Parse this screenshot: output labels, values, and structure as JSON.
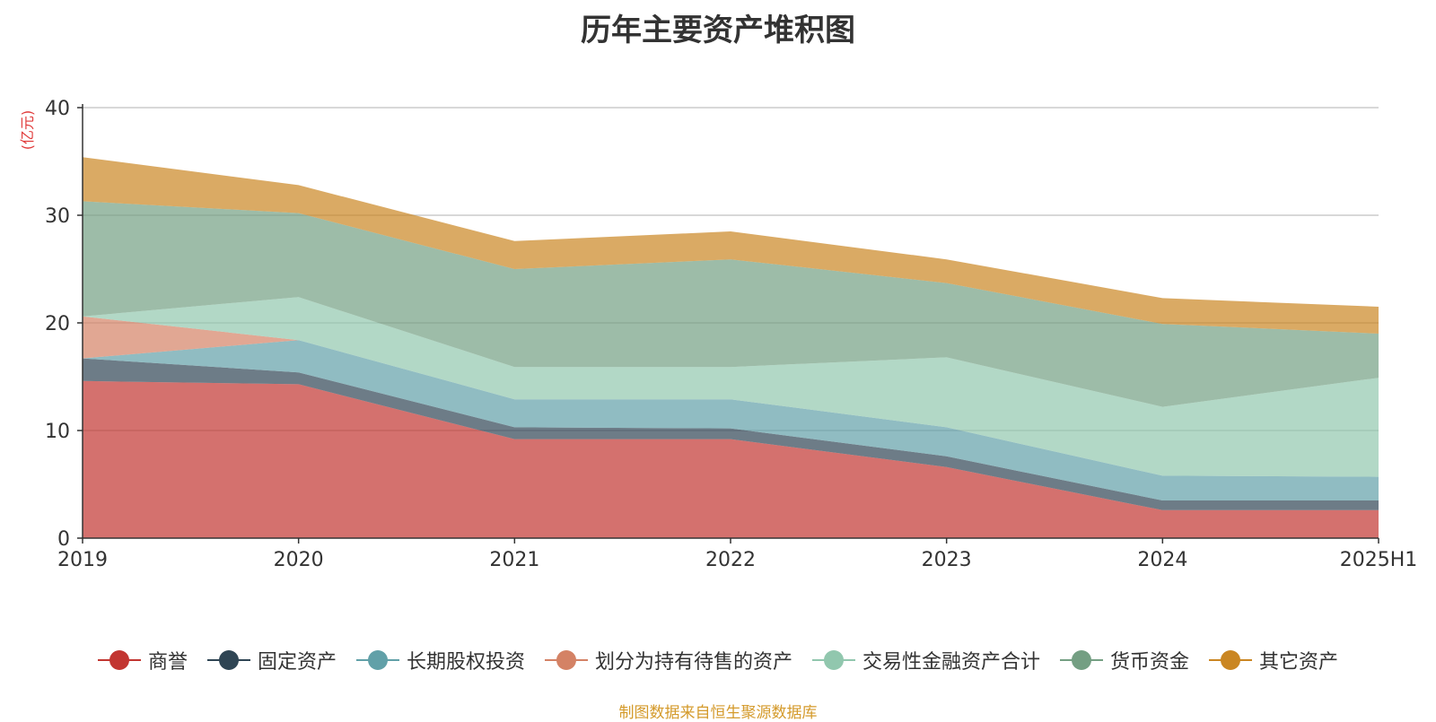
{
  "title": "历年主要资产堆积图",
  "source_note": "制图数据来自恒生聚源数据库",
  "chart_data": {
    "type": "area",
    "stacked": true,
    "title": "历年主要资产堆积图",
    "ylabel": "(亿元)",
    "xlabel": "",
    "ylim": [
      0,
      40
    ],
    "yticks": [
      0,
      10,
      20,
      30,
      40
    ],
    "grid": true,
    "legend_position": "bottom",
    "categories": [
      "2019",
      "2020",
      "2021",
      "2022",
      "2023",
      "2024",
      "2025H1"
    ],
    "series": [
      {
        "name": "商誉",
        "color": "#c23531",
        "values": [
          14.6,
          14.3,
          9.2,
          9.2,
          6.6,
          2.6,
          2.6
        ]
      },
      {
        "name": "固定资产",
        "color": "#2f4554",
        "values": [
          2.1,
          1.1,
          1.1,
          1.0,
          1.0,
          0.9,
          0.9
        ]
      },
      {
        "name": "长期股权投资",
        "color": "#61a0a8",
        "values": [
          0.0,
          3.0,
          2.6,
          2.7,
          2.7,
          2.3,
          2.2
        ]
      },
      {
        "name": "划分为持有待售的资产",
        "color": "#d48265",
        "values": [
          3.9,
          0.0,
          0.0,
          0.0,
          0.0,
          0.0,
          0.0
        ]
      },
      {
        "name": "交易性金融资产合计",
        "color": "#91c7ae",
        "values": [
          0.0,
          4.0,
          3.0,
          3.0,
          6.5,
          6.4,
          9.2
        ]
      },
      {
        "name": "货币资金",
        "color": "#749f83",
        "values": [
          10.7,
          7.8,
          9.1,
          10.0,
          6.9,
          7.7,
          4.1
        ]
      },
      {
        "name": "其它资产",
        "color": "#ca8622",
        "values": [
          4.1,
          2.6,
          2.6,
          2.6,
          2.2,
          2.4,
          2.5
        ]
      }
    ]
  }
}
